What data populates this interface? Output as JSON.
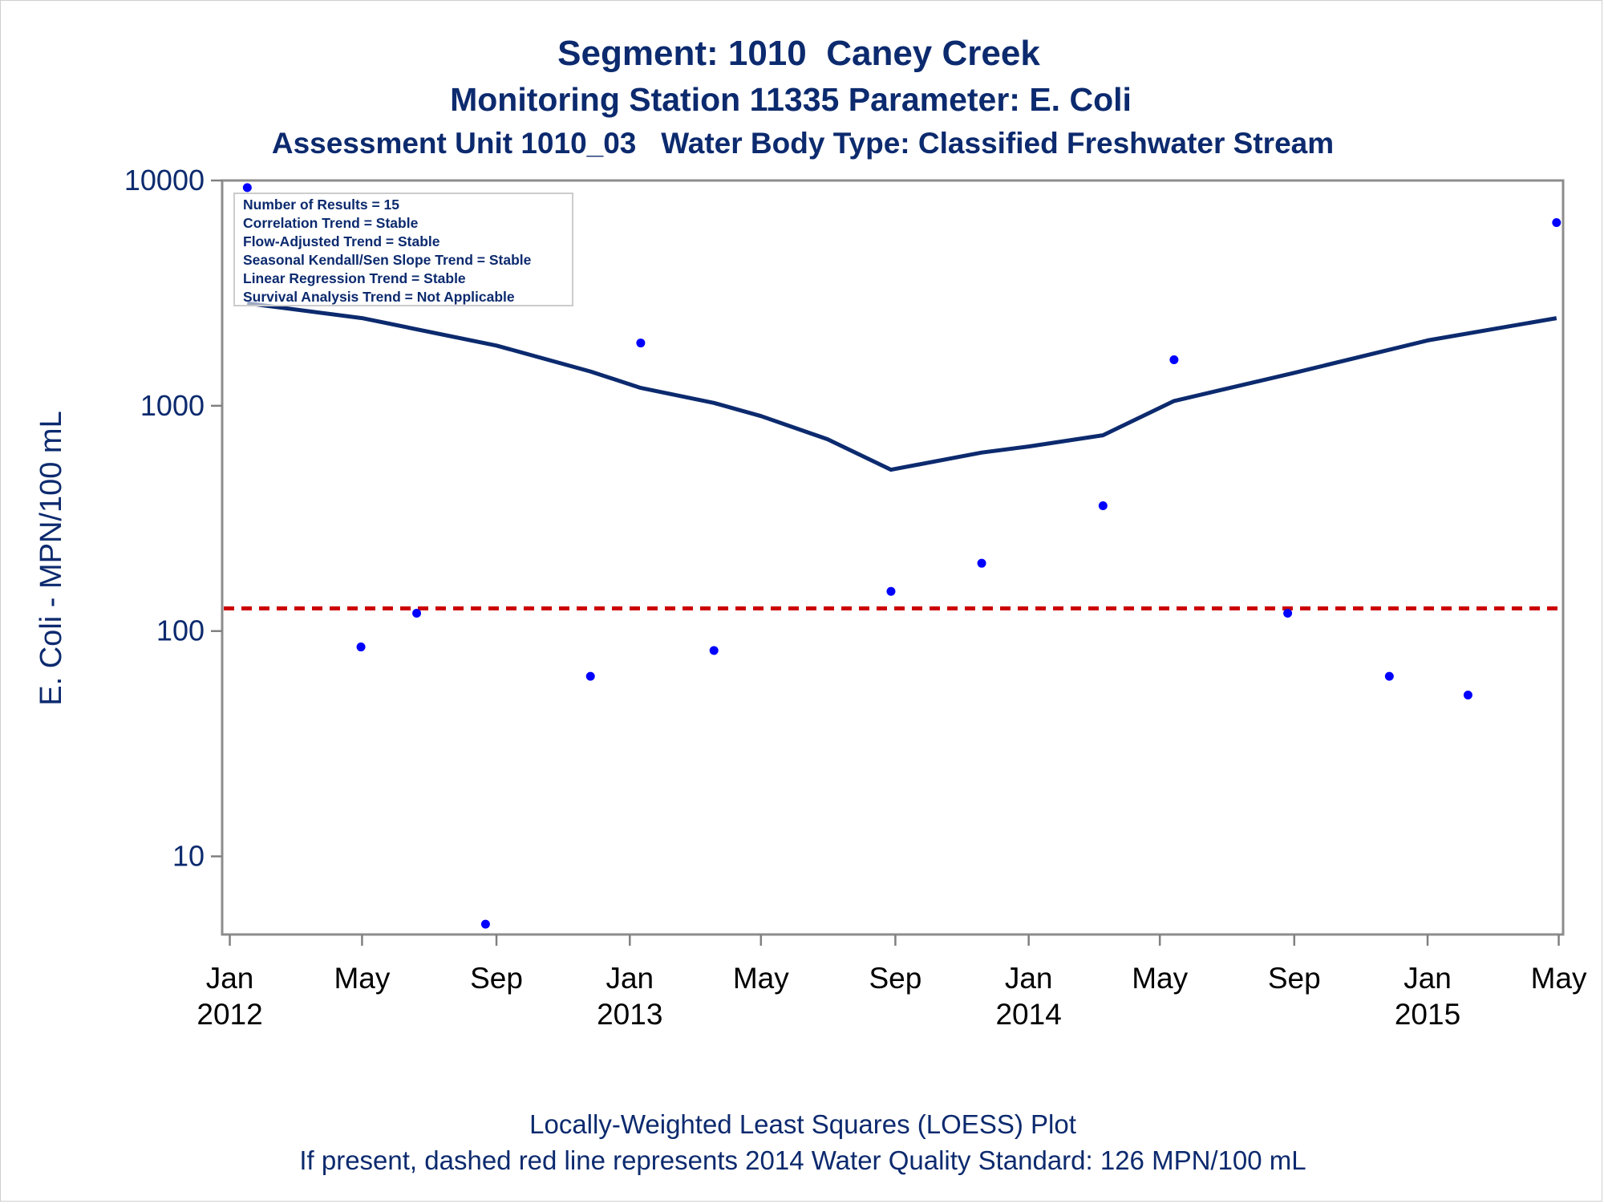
{
  "titles": {
    "line1": "Segment: 1010  Caney Creek",
    "line2": "Monitoring Station 11335 Parameter: E. Coli",
    "line3": "Assessment Unit 1010_03   Water Body Type: Classified Freshwater Stream"
  },
  "footnotes": {
    "line1": "Locally-Weighted Least Squares (LOESS) Plot",
    "line2": "If present, dashed red line represents 2014 Water Quality Standard: 126 MPN/100 mL"
  },
  "stats_box": [
    "Number of Results = 15",
    "Correlation Trend = Stable",
    "Flow-Adjusted Trend = Stable",
    "Seasonal Kendall/Sen Slope Trend = Stable",
    "Linear Regression Trend = Stable",
    "Survival Analysis Trend = Not Applicable"
  ],
  "colors": {
    "points": "#0000ff",
    "loess_line": "#0c2a6e",
    "standard_line": "#cc0000",
    "text": "#0c2a6e",
    "axis": "#808080"
  },
  "chart_data": {
    "type": "scatter",
    "title": "Segment: 1010  Caney Creek",
    "ylabel": "E. Coli - MPN/100 mL",
    "xlabel": "",
    "yscale": "log",
    "ylim": [
      4.5,
      10000
    ],
    "xlim": [
      "2011-12-25",
      "2015-05-05"
    ],
    "yticks": [
      10,
      100,
      1000,
      10000
    ],
    "ytick_labels": [
      "10",
      "100",
      "1000",
      "10000"
    ],
    "xticks": [
      {
        "date": "2012-01-01",
        "month": "Jan",
        "year": "2012"
      },
      {
        "date": "2012-05-01",
        "month": "May",
        "year": ""
      },
      {
        "date": "2012-09-01",
        "month": "Sep",
        "year": ""
      },
      {
        "date": "2013-01-01",
        "month": "Jan",
        "year": "2013"
      },
      {
        "date": "2013-05-01",
        "month": "May",
        "year": ""
      },
      {
        "date": "2013-09-01",
        "month": "Sep",
        "year": ""
      },
      {
        "date": "2014-01-01",
        "month": "Jan",
        "year": "2014"
      },
      {
        "date": "2014-05-01",
        "month": "May",
        "year": ""
      },
      {
        "date": "2014-09-01",
        "month": "Sep",
        "year": ""
      },
      {
        "date": "2015-01-01",
        "month": "Jan",
        "year": "2015"
      },
      {
        "date": "2015-05-01",
        "month": "May",
        "year": ""
      }
    ],
    "points": [
      {
        "x": "2012-01-17",
        "y": 9300
      },
      {
        "x": "2012-04-30",
        "y": 85
      },
      {
        "x": "2012-06-20",
        "y": 120
      },
      {
        "x": "2012-08-22",
        "y": 5
      },
      {
        "x": "2012-11-26",
        "y": 63
      },
      {
        "x": "2013-01-11",
        "y": 1900
      },
      {
        "x": "2013-03-19",
        "y": 82
      },
      {
        "x": "2013-08-28",
        "y": 150
      },
      {
        "x": "2013-11-19",
        "y": 200
      },
      {
        "x": "2014-03-10",
        "y": 360
      },
      {
        "x": "2014-05-14",
        "y": 1600
      },
      {
        "x": "2014-08-26",
        "y": 120
      },
      {
        "x": "2014-11-27",
        "y": 63
      },
      {
        "x": "2015-02-07",
        "y": 52
      },
      {
        "x": "2015-04-29",
        "y": 6500
      }
    ],
    "loess": [
      {
        "x": "2012-01-17",
        "y": 2850
      },
      {
        "x": "2012-05-01",
        "y": 2450
      },
      {
        "x": "2012-09-01",
        "y": 1850
      },
      {
        "x": "2012-11-26",
        "y": 1420
      },
      {
        "x": "2013-01-11",
        "y": 1200
      },
      {
        "x": "2013-03-19",
        "y": 1030
      },
      {
        "x": "2013-05-01",
        "y": 900
      },
      {
        "x": "2013-07-01",
        "y": 710
      },
      {
        "x": "2013-08-28",
        "y": 520
      },
      {
        "x": "2013-11-19",
        "y": 620
      },
      {
        "x": "2014-01-01",
        "y": 660
      },
      {
        "x": "2014-03-10",
        "y": 740
      },
      {
        "x": "2014-05-14",
        "y": 1050
      },
      {
        "x": "2014-09-01",
        "y": 1400
      },
      {
        "x": "2015-01-01",
        "y": 1950
      },
      {
        "x": "2015-04-29",
        "y": 2450
      }
    ],
    "reference_line": {
      "y": 126,
      "style": "dashed",
      "label": "2014 Water Quality Standard: 126 MPN/100 mL"
    },
    "legend": "none",
    "grid": false
  }
}
